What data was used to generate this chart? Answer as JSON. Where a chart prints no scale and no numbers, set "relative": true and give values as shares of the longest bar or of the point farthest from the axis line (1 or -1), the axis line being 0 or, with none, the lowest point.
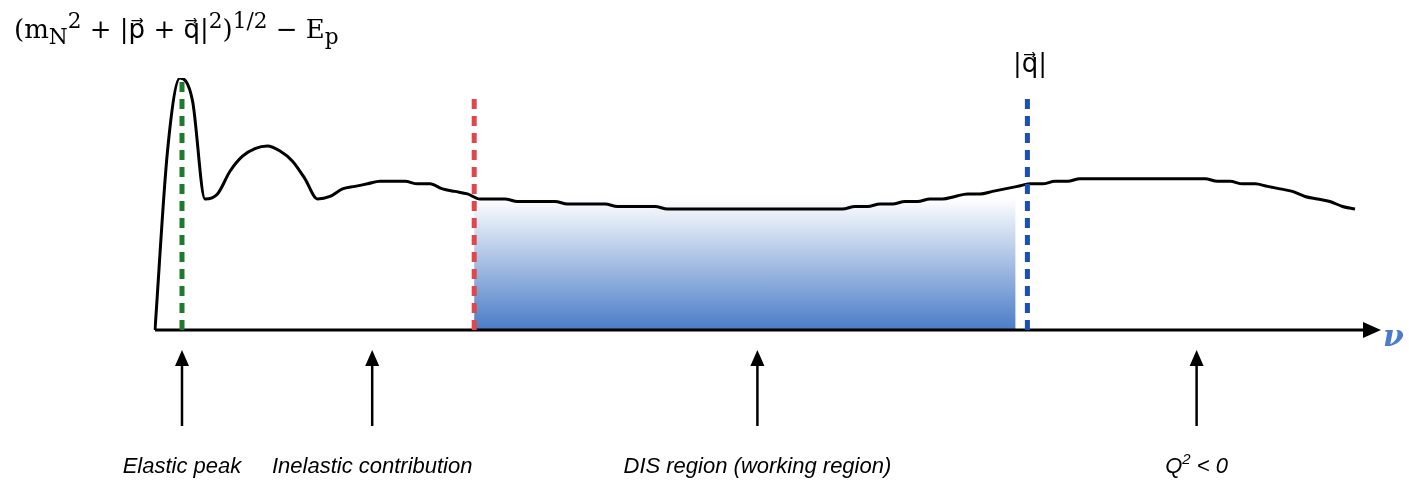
{
  "chart_data": {
    "type": "line",
    "relative": true,
    "xlabel": "ν",
    "color": "#000000",
    "categories": [
      null,
      null,
      null,
      null,
      null,
      null,
      null,
      null,
      null,
      null,
      null,
      null,
      null,
      null,
      null,
      null,
      null,
      null,
      null,
      null,
      null,
      null,
      null,
      null,
      null,
      null,
      null,
      null,
      null,
      null,
      null,
      null,
      null,
      null,
      null,
      null,
      null,
      null,
      null,
      null,
      null,
      null,
      null,
      null,
      null,
      null,
      null,
      null,
      null,
      null,
      null,
      null,
      null,
      null,
      null,
      null,
      null,
      null,
      null,
      null,
      null,
      null,
      null,
      null,
      null,
      null,
      null,
      null,
      null,
      null,
      null,
      null,
      null,
      null,
      null,
      null,
      null,
      null,
      null,
      null,
      null,
      null,
      null,
      null,
      null,
      null,
      null,
      null,
      null,
      null,
      null,
      null,
      null,
      null,
      null,
      null,
      null
    ],
    "values": [
      0,
      0.71,
      1,
      0.91,
      0.52,
      0.54,
      0.63,
      0.69,
      0.72,
      0.73,
      0.71,
      0.67,
      0.6,
      0.52,
      0.53,
      0.56,
      0.57,
      0.58,
      0.59,
      0.59,
      0.59,
      0.58,
      0.58,
      0.56,
      0.55,
      0.54,
      0.52,
      0.52,
      0.52,
      0.51,
      0.51,
      0.51,
      0.51,
      0.5,
      0.5,
      0.5,
      0.5,
      0.49,
      0.49,
      0.49,
      0.49,
      0.48,
      0.48,
      0.48,
      0.48,
      0.48,
      0.48,
      0.48,
      0.48,
      0.48,
      0.48,
      0.48,
      0.48,
      0.48,
      0.48,
      0.48,
      0.49,
      0.49,
      0.5,
      0.5,
      0.51,
      0.51,
      0.52,
      0.52,
      0.53,
      0.54,
      0.54,
      0.55,
      0.56,
      0.57,
      0.58,
      0.58,
      0.59,
      0.59,
      0.6,
      0.6,
      0.6,
      0.6,
      0.6,
      0.6,
      0.6,
      0.6,
      0.6,
      0.6,
      0.6,
      0.59,
      0.59,
      0.58,
      0.58,
      0.57,
      0.56,
      0.55,
      0.53,
      0.52,
      0.51,
      0.49,
      0.48
    ],
    "annotations": [
      "(m$_{N}$$^{2}$ + |p⃗ + q⃗|$^{2}$)$^{1/2}$ − E$_{p}$",
      "|q⃗|",
      "Elastic peak",
      "Inelastic contribution",
      "DIS region (working region)",
      "Q$^{2}$ < 0"
    ]
  }
}
